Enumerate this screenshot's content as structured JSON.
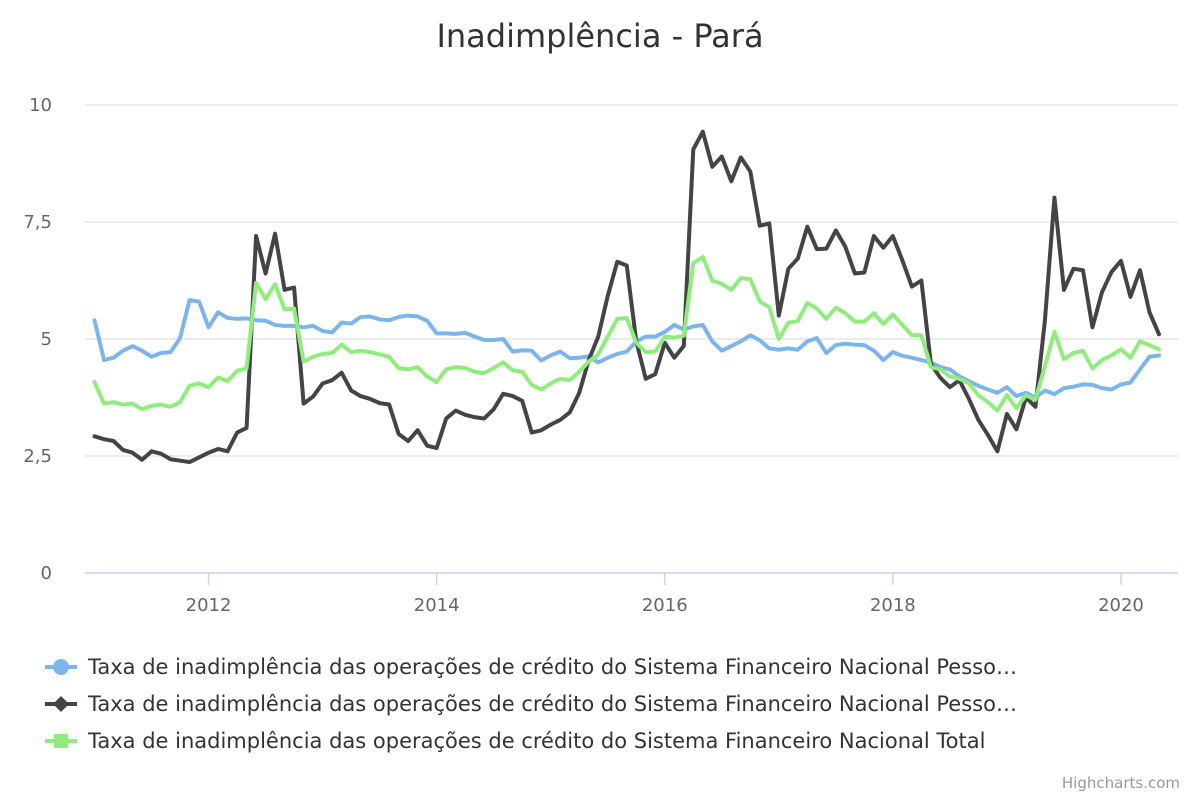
{
  "chart_data": {
    "type": "line",
    "title": "Inadimplência - Pará",
    "xlabel": "",
    "ylabel": "",
    "x_start": "2011-01",
    "x_frequency": "monthly",
    "x_tick_labels": [
      "2012",
      "2014",
      "2016",
      "2018",
      "2020"
    ],
    "x_tick_years": [
      2012,
      2014,
      2016,
      2018,
      2020
    ],
    "x_range": [
      "2010-12",
      "2020-07"
    ],
    "y_tick_labels": [
      "0",
      "2,5",
      "5",
      "7,5",
      "10"
    ],
    "y_ticks": [
      0,
      2.5,
      5,
      7.5,
      10
    ],
    "ylim": [
      0,
      10
    ],
    "grid": true,
    "legend_position": "bottom",
    "credits": "Highcharts.com",
    "series": [
      {
        "name": "Taxa de inadimplência das operações de crédito do Sistema Financeiro Nacional Pesso…",
        "color": "#7cb5ec",
        "marker": "circle",
        "values": [
          5.4,
          4.55,
          4.6,
          4.75,
          4.85,
          4.75,
          4.62,
          4.7,
          4.72,
          5.02,
          5.83,
          5.8,
          5.25,
          5.57,
          5.45,
          5.43,
          5.44,
          5.4,
          5.39,
          5.3,
          5.28,
          5.28,
          5.25,
          5.28,
          5.17,
          5.14,
          5.35,
          5.33,
          5.47,
          5.48,
          5.42,
          5.4,
          5.47,
          5.5,
          5.48,
          5.39,
          5.12,
          5.12,
          5.11,
          5.13,
          5.05,
          4.98,
          4.98,
          5.0,
          4.73,
          4.76,
          4.75,
          4.54,
          4.65,
          4.73,
          4.59,
          4.6,
          4.63,
          4.5,
          4.6,
          4.68,
          4.73,
          4.95,
          5.05,
          5.05,
          5.15,
          5.3,
          5.2,
          5.27,
          5.3,
          4.95,
          4.75,
          4.85,
          4.95,
          5.08,
          4.97,
          4.8,
          4.77,
          4.8,
          4.77,
          4.95,
          5.02,
          4.7,
          4.87,
          4.9,
          4.88,
          4.87,
          4.75,
          4.55,
          4.72,
          4.64,
          4.6,
          4.55,
          4.5,
          4.4,
          4.35,
          4.2,
          4.1,
          4.0,
          3.92,
          3.85,
          3.97,
          3.78,
          3.85,
          3.75,
          3.9,
          3.82,
          3.95,
          3.98,
          4.03,
          4.02,
          3.95,
          3.92,
          4.03,
          4.07,
          4.35,
          4.62,
          4.65
        ]
      },
      {
        "name": "Taxa de inadimplência das operações de crédito do Sistema Financeiro Nacional Pesso…",
        "color": "#434348",
        "marker": "diamond",
        "values": [
          2.92,
          2.86,
          2.82,
          2.63,
          2.57,
          2.42,
          2.6,
          2.55,
          2.43,
          2.4,
          2.37,
          2.47,
          2.57,
          2.65,
          2.6,
          3.0,
          3.1,
          7.2,
          6.4,
          7.25,
          6.05,
          6.1,
          3.62,
          3.77,
          4.05,
          4.12,
          4.28,
          3.9,
          3.78,
          3.72,
          3.63,
          3.6,
          2.97,
          2.82,
          3.05,
          2.72,
          2.67,
          3.3,
          3.47,
          3.38,
          3.33,
          3.3,
          3.5,
          3.83,
          3.78,
          3.68,
          3.0,
          3.05,
          3.17,
          3.27,
          3.43,
          3.85,
          4.55,
          5.05,
          5.92,
          6.65,
          6.57,
          4.95,
          4.15,
          4.25,
          4.92,
          4.6,
          4.85,
          9.05,
          9.43,
          8.68,
          8.9,
          8.37,
          8.88,
          8.58,
          7.42,
          7.47,
          5.5,
          6.5,
          6.72,
          7.4,
          6.92,
          6.93,
          7.32,
          6.97,
          6.4,
          6.42,
          7.2,
          6.95,
          7.2,
          6.68,
          6.12,
          6.25,
          4.47,
          4.17,
          3.97,
          4.12,
          3.72,
          3.27,
          2.95,
          2.6,
          3.4,
          3.07,
          3.75,
          3.55,
          5.4,
          8.02,
          6.05,
          6.5,
          6.47,
          5.25,
          6.0,
          6.43,
          6.67,
          5.9,
          6.47,
          5.57,
          5.1
        ]
      },
      {
        "name": "Taxa de inadimplência das operações de crédito do Sistema Financeiro Nacional Total",
        "color": "#90ed7d",
        "marker": "square",
        "values": [
          4.08,
          3.62,
          3.65,
          3.6,
          3.62,
          3.5,
          3.57,
          3.6,
          3.55,
          3.65,
          4.0,
          4.05,
          3.97,
          4.18,
          4.1,
          4.32,
          4.37,
          6.2,
          5.85,
          6.17,
          5.63,
          5.65,
          4.52,
          4.62,
          4.68,
          4.7,
          4.88,
          4.72,
          4.75,
          4.72,
          4.67,
          4.62,
          4.38,
          4.35,
          4.4,
          4.2,
          4.08,
          4.35,
          4.4,
          4.38,
          4.3,
          4.27,
          4.38,
          4.5,
          4.33,
          4.3,
          4.02,
          3.92,
          4.05,
          4.15,
          4.12,
          4.3,
          4.52,
          4.67,
          5.05,
          5.43,
          5.45,
          4.92,
          4.72,
          4.73,
          5.05,
          5.03,
          5.07,
          6.62,
          6.75,
          6.25,
          6.18,
          6.05,
          6.3,
          6.28,
          5.8,
          5.68,
          5.0,
          5.35,
          5.38,
          5.77,
          5.65,
          5.43,
          5.67,
          5.55,
          5.37,
          5.37,
          5.55,
          5.32,
          5.52,
          5.3,
          5.08,
          5.08,
          4.4,
          4.35,
          4.2,
          4.15,
          4.05,
          3.8,
          3.65,
          3.47,
          3.8,
          3.52,
          3.8,
          3.7,
          4.42,
          5.15,
          4.57,
          4.7,
          4.75,
          4.37,
          4.55,
          4.65,
          4.78,
          4.6,
          4.95,
          4.87,
          4.78
        ]
      }
    ]
  }
}
